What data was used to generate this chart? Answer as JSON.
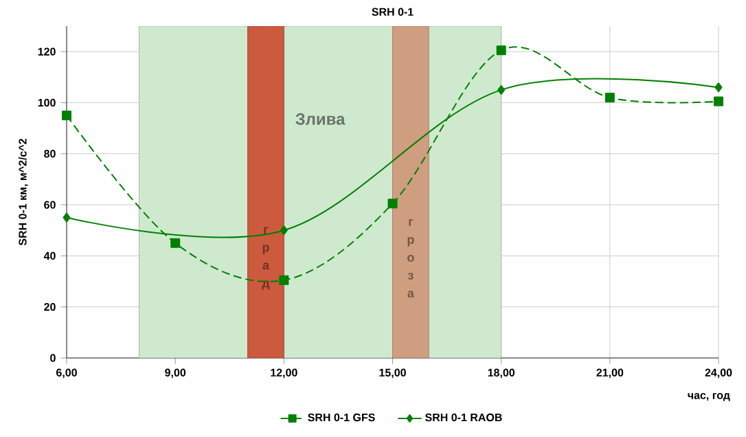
{
  "chart_data": {
    "type": "line",
    "title": "SRH 0-1",
    "xlabel": "час, год",
    "ylabel": "SRH 0-1 км, м^2/с^2",
    "xlim": [
      6,
      24
    ],
    "xticks": [
      {
        "value": 6,
        "label": "6,00"
      },
      {
        "value": 9,
        "label": "9,00"
      },
      {
        "value": 12,
        "label": "12,00"
      },
      {
        "value": 15,
        "label": "15,00"
      },
      {
        "value": 18,
        "label": "18,00"
      },
      {
        "value": 21,
        "label": "21,00"
      },
      {
        "value": 24,
        "label": "24,00"
      }
    ],
    "ylim": [
      0,
      130
    ],
    "yticks": [
      0,
      20,
      40,
      60,
      80,
      100,
      120
    ],
    "grid": true,
    "legend": "bottom",
    "series": [
      {
        "name": "SRH 0-1 GFS",
        "color": "#008000",
        "marker": "square",
        "line_style": "dashed",
        "x": [
          6,
          9,
          12,
          15,
          18,
          21,
          24
        ],
        "values": [
          95,
          45,
          30.5,
          60.5,
          120.5,
          102,
          100.5
        ]
      },
      {
        "name": "SRH 0-1 RAOB",
        "color": "#008000",
        "marker": "diamond",
        "line_style": "solid",
        "x": [
          6,
          12,
          18,
          24
        ],
        "values": [
          55,
          50,
          105,
          106
        ]
      }
    ],
    "bands": [
      {
        "axis": "x",
        "from": 8,
        "to": 18,
        "label": "Злива",
        "color": "#cfe9cf"
      },
      {
        "axis": "x",
        "from": 11,
        "to": 12,
        "label": "г р а д",
        "color": "#cc5a3e"
      },
      {
        "axis": "x",
        "from": 15,
        "to": 16,
        "label": "г р о з а",
        "color": "#cf9e80"
      }
    ]
  }
}
